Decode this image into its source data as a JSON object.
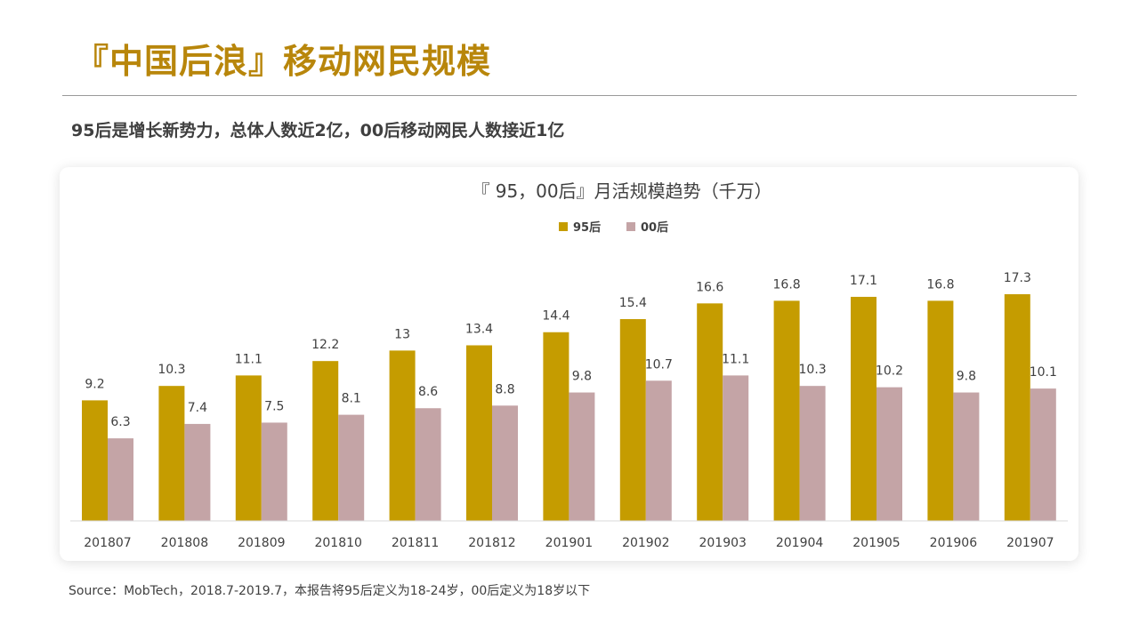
{
  "page": {
    "title": "『中国后浪』移动网民规模",
    "subtitle": "95后是增长新势力，总体人数近2亿，00后移动网民人数接近1亿",
    "source": "Source：MobTech，2018.7-2019.7，本报告将95后定义为18-24岁，00后定义为18岁以下"
  },
  "colors": {
    "accent": "#B8860B",
    "series_95": "#C59C00",
    "series_00": "#C4A4A6"
  },
  "chart_data": {
    "type": "bar",
    "title": "『 95，00后』月活规模趋势（千万）",
    "categories": [
      "201807",
      "201808",
      "201809",
      "201810",
      "201811",
      "201812",
      "201901",
      "201902",
      "201903",
      "201904",
      "201905",
      "201906",
      "201907"
    ],
    "series": [
      {
        "name": "95后",
        "values": [
          9.2,
          10.3,
          11.1,
          12.2,
          13,
          13.4,
          14.4,
          15.4,
          16.6,
          16.8,
          17.1,
          16.8,
          17.3
        ]
      },
      {
        "name": "00后",
        "values": [
          6.3,
          7.4,
          7.5,
          8.1,
          8.6,
          8.8,
          9.8,
          10.7,
          11.1,
          10.3,
          10.2,
          9.8,
          10.1
        ]
      }
    ],
    "ylim": [
      0,
      17.3
    ],
    "legend": "top-center",
    "grid": false,
    "data_labels": true
  }
}
